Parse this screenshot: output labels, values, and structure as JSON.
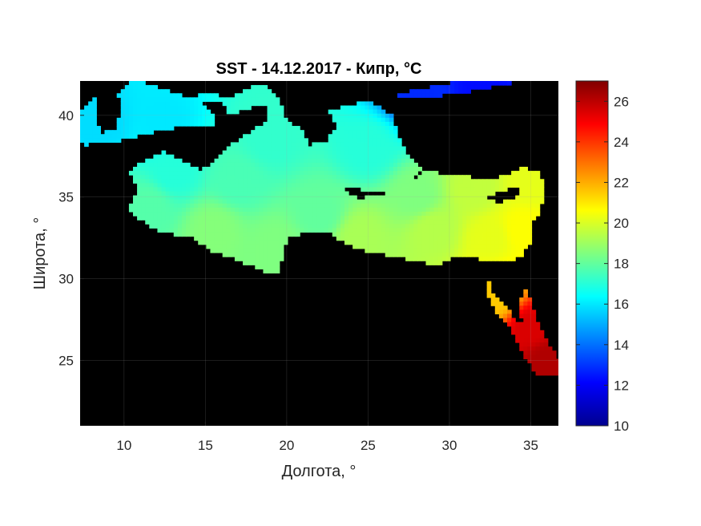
{
  "chart_data": {
    "type": "heatmap",
    "title": "SST - 14.12.2017 - Кипр, °C",
    "xlabel": "Долгота, °",
    "ylabel": "Широта, °",
    "xlim": [
      7.3,
      36.7
    ],
    "ylim": [
      21,
      42.1
    ],
    "x_ticks": [
      "10",
      "15",
      "20",
      "25",
      "30",
      "35"
    ],
    "x_tick_values": [
      10,
      15,
      20,
      25,
      30,
      35
    ],
    "y_ticks": [
      "25",
      "30",
      "35",
      "40"
    ],
    "y_tick_values": [
      25,
      30,
      35,
      40
    ],
    "grid": true,
    "background": "#000000",
    "colorbar": {
      "colormap": "jet",
      "range": [
        10,
        27
      ],
      "ticks": [
        "10",
        "12",
        "14",
        "16",
        "18",
        "20",
        "22",
        "24",
        "26"
      ],
      "tick_values": [
        10,
        12,
        14,
        16,
        18,
        20,
        22,
        24,
        26
      ]
    },
    "sea_regions": [
      {
        "name": "western",
        "lonlat": [
          [
            7.5,
            38.2
          ],
          [
            9.2,
            38.3
          ],
          [
            11.5,
            38.9
          ],
          [
            13.5,
            39.3
          ],
          [
            15.5,
            39.4
          ],
          [
            15.4,
            40.2
          ],
          [
            14.7,
            40.8
          ],
          [
            16,
            40.9
          ],
          [
            16.5,
            40.1
          ],
          [
            17.3,
            40.3
          ],
          [
            18.5,
            40.7
          ],
          [
            19,
            40.1
          ],
          [
            18.6,
            39.5
          ],
          [
            17.5,
            38.8
          ],
          [
            16.6,
            38.2
          ],
          [
            15.8,
            37.5
          ],
          [
            15.3,
            36.9
          ],
          [
            14.6,
            36.7
          ],
          [
            13.5,
            37.2
          ],
          [
            12.5,
            37.8
          ],
          [
            11.2,
            37.2
          ],
          [
            10.3,
            36.6
          ],
          [
            10.9,
            35.6
          ],
          [
            10.3,
            34.2
          ],
          [
            11.3,
            33.4
          ],
          [
            12.2,
            32.9
          ],
          [
            14.2,
            32.5
          ],
          [
            15.4,
            31.7
          ],
          [
            17.3,
            31.0
          ],
          [
            18.6,
            30.5
          ],
          [
            19.1,
            30.2
          ],
          [
            19.6,
            30.6
          ],
          [
            19.8,
            31.8
          ],
          [
            20.1,
            32.5
          ],
          [
            21.2,
            32.9
          ],
          [
            22.6,
            32.8
          ],
          [
            23.6,
            32.2
          ],
          [
            25.1,
            31.6
          ],
          [
            26.5,
            31.4
          ],
          [
            28.2,
            31.0
          ],
          [
            29.5,
            30.9
          ],
          [
            30.5,
            31.4
          ],
          [
            31.6,
            31.3
          ],
          [
            32.4,
            31.1
          ],
          [
            33.5,
            31.1
          ],
          [
            34.3,
            31.3
          ],
          [
            34.8,
            31.9
          ],
          [
            35.1,
            32.6
          ],
          [
            35.0,
            33.2
          ],
          [
            35.4,
            33.9
          ],
          [
            35.7,
            34.6
          ],
          [
            35.8,
            35.7
          ],
          [
            35.6,
            36.5
          ],
          [
            34.6,
            36.8
          ],
          [
            33.4,
            36.3
          ],
          [
            32.2,
            36.1
          ],
          [
            30.6,
            36.3
          ],
          [
            29.5,
            36.4
          ],
          [
            28.3,
            36.7
          ],
          [
            27.5,
            37.6
          ],
          [
            26.8,
            38.7
          ],
          [
            26.5,
            40.0
          ],
          [
            25.0,
            40.9
          ],
          [
            23.5,
            40.5
          ],
          [
            22.6,
            40.3
          ],
          [
            23.1,
            39.4
          ],
          [
            22.3,
            38.3
          ],
          [
            21.4,
            38.2
          ],
          [
            21.0,
            39.0
          ],
          [
            20.0,
            39.8
          ],
          [
            19.3,
            41.3
          ],
          [
            18.5,
            42.0
          ],
          [
            17.5,
            41.6
          ],
          [
            16.3,
            41.0
          ],
          [
            15.1,
            41.5
          ],
          [
            14.3,
            41.0
          ],
          [
            12.5,
            41.6
          ],
          [
            11.3,
            42.0
          ],
          [
            10.4,
            42.1
          ],
          [
            9.5,
            41.1
          ],
          [
            8.0,
            41.0
          ],
          [
            7.3,
            40.2
          ],
          [
            7.3,
            38.5
          ]
        ]
      },
      {
        "name": "black-sea-edge",
        "lonlat": [
          [
            26.6,
            41.3
          ],
          [
            27.8,
            41.5
          ],
          [
            29.0,
            41.8
          ],
          [
            31.0,
            42.1
          ],
          [
            34.5,
            42.1
          ],
          [
            33.0,
            41.8
          ],
          [
            31.5,
            41.5
          ],
          [
            30.0,
            41.3
          ],
          [
            28.6,
            41.0
          ],
          [
            27.5,
            41.0
          ]
        ]
      },
      {
        "name": "red-sea",
        "lonlat": [
          [
            32.4,
            29.9
          ],
          [
            32.6,
            29.2
          ],
          [
            33.2,
            28.6
          ],
          [
            33.9,
            27.7
          ],
          [
            34.5,
            27.2
          ],
          [
            34.3,
            28.6
          ],
          [
            34.8,
            29.5
          ],
          [
            35.0,
            28.4
          ],
          [
            35.5,
            27.3
          ],
          [
            36.2,
            25.9
          ],
          [
            36.7,
            25.0
          ],
          [
            36.7,
            24.1
          ],
          [
            35.3,
            24.2
          ],
          [
            34.6,
            25.3
          ],
          [
            33.8,
            26.9
          ],
          [
            33.2,
            27.6
          ],
          [
            32.6,
            28.4
          ],
          [
            32.3,
            29.3
          ]
        ]
      }
    ],
    "islands": [
      {
        "name": "Sardinia",
        "lonlat": [
          [
            8.4,
            41.2
          ],
          [
            9.8,
            41.0
          ],
          [
            9.6,
            39.2
          ],
          [
            8.6,
            38.9
          ],
          [
            8.2,
            39.8
          ]
        ]
      },
      {
        "name": "Sicily",
        "lonlat": [
          [
            12.4,
            38.1
          ],
          [
            15.6,
            38.3
          ],
          [
            15.1,
            36.8
          ],
          [
            13.0,
            37.6
          ]
        ]
      },
      {
        "name": "Crete",
        "lonlat": [
          [
            23.5,
            35.6
          ],
          [
            26.3,
            35.3
          ],
          [
            24.5,
            34.9
          ],
          [
            23.5,
            35.3
          ]
        ]
      },
      {
        "name": "Cyprus",
        "lonlat": [
          [
            32.3,
            35.0
          ],
          [
            33.8,
            35.6
          ],
          [
            34.6,
            35.7
          ],
          [
            33.9,
            34.9
          ],
          [
            33.0,
            34.6
          ]
        ]
      },
      {
        "name": "Rhodes",
        "lonlat": [
          [
            27.8,
            36.3
          ],
          [
            28.2,
            36.5
          ],
          [
            28.0,
            35.9
          ]
        ]
      }
    ],
    "sst_anchors": [
      {
        "lon": 8.5,
        "lat": 39.5,
        "value": 15.8
      },
      {
        "lon": 12.5,
        "lat": 39.5,
        "value": 16.0
      },
      {
        "lon": 13,
        "lat": 36.5,
        "value": 17.0
      },
      {
        "lon": 11.5,
        "lat": 34.5,
        "value": 17.8
      },
      {
        "lon": 15.5,
        "lat": 33,
        "value": 18.6
      },
      {
        "lon": 17,
        "lat": 36,
        "value": 17.6
      },
      {
        "lon": 19,
        "lat": 38.5,
        "value": 17.2
      },
      {
        "lon": 19.5,
        "lat": 32,
        "value": 18.5
      },
      {
        "lon": 22,
        "lat": 34,
        "value": 18.0
      },
      {
        "lon": 24.5,
        "lat": 32.5,
        "value": 19.2
      },
      {
        "lon": 25,
        "lat": 38,
        "value": 17.0
      },
      {
        "lon": 28,
        "lat": 35,
        "value": 18.5
      },
      {
        "lon": 29,
        "lat": 33,
        "value": 19.4
      },
      {
        "lon": 31.5,
        "lat": 35.5,
        "value": 19.6
      },
      {
        "lon": 32.5,
        "lat": 32.5,
        "value": 20.2
      },
      {
        "lon": 34.5,
        "lat": 33,
        "value": 20.6
      },
      {
        "lon": 35,
        "lat": 36,
        "value": 20.2
      },
      {
        "lon": 28,
        "lat": 41.5,
        "value": 12.8
      },
      {
        "lon": 32,
        "lat": 42,
        "value": 12.3
      },
      {
        "lon": 33,
        "lat": 29,
        "value": 21.5
      },
      {
        "lon": 35,
        "lat": 27,
        "value": 25.5
      },
      {
        "lon": 36,
        "lat": 25,
        "value": 26.2
      }
    ]
  }
}
